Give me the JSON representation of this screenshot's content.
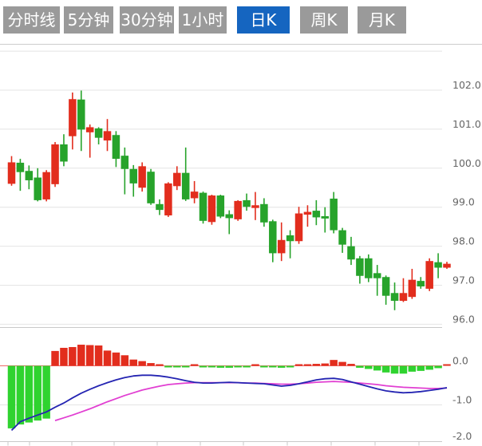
{
  "tabs": [
    {
      "label": "分时线",
      "active": false
    },
    {
      "label": "5分钟",
      "active": false
    },
    {
      "label": "30分钟",
      "active": false
    },
    {
      "label": "1小时",
      "active": false
    },
    {
      "label": "日K",
      "active": true
    },
    {
      "label": "周K",
      "active": false
    },
    {
      "label": "月K",
      "active": false
    }
  ],
  "colors": {
    "tab_inactive_bg": "#9a9a9a",
    "tab_active_bg": "#1565c0",
    "tab_text": "#ffffff",
    "candle_up": "#e22d1d",
    "candle_down": "#27a32b",
    "hist_up": "#e22d1d",
    "hist_down": "#2fd32f",
    "dif_line": "#2424b2",
    "dea_line": "#e13fd2",
    "zero_line": "#ef6a6a",
    "grid": "#e4e4e4",
    "axis": "#c9c9c9",
    "label": "#666666"
  },
  "chart_data": {
    "type": "candlestick",
    "title": "",
    "legend_position": "none",
    "grid": true,
    "main_panel": {
      "y_axis_labels": [
        "102.0",
        "101.0",
        "100.0",
        "99.0",
        "98.0",
        "97.0",
        "96.0"
      ],
      "y_range": [
        95.8,
        103.0
      ],
      "candles_ohlc": [
        {
          "o": 99.6,
          "h": 100.31,
          "l": 99.55,
          "c": 100.15
        },
        {
          "o": 100.14,
          "h": 100.24,
          "l": 99.42,
          "c": 99.9
        },
        {
          "o": 99.93,
          "h": 100.07,
          "l": 99.46,
          "c": 99.69
        },
        {
          "o": 99.76,
          "h": 100.0,
          "l": 99.15,
          "c": 99.18
        },
        {
          "o": 99.2,
          "h": 99.95,
          "l": 99.15,
          "c": 99.9
        },
        {
          "o": 99.59,
          "h": 100.67,
          "l": 99.52,
          "c": 100.61
        },
        {
          "o": 100.61,
          "h": 100.87,
          "l": 100.05,
          "c": 100.17
        },
        {
          "o": 100.82,
          "h": 101.94,
          "l": 100.48,
          "c": 101.77
        },
        {
          "o": 101.76,
          "h": 101.99,
          "l": 100.44,
          "c": 100.99
        },
        {
          "o": 100.92,
          "h": 101.12,
          "l": 100.27,
          "c": 101.05
        },
        {
          "o": 101.02,
          "h": 101.05,
          "l": 100.61,
          "c": 100.78
        },
        {
          "o": 100.71,
          "h": 101.26,
          "l": 100.44,
          "c": 100.95
        },
        {
          "o": 100.85,
          "h": 100.95,
          "l": 100.03,
          "c": 100.24
        },
        {
          "o": 100.32,
          "h": 100.53,
          "l": 99.33,
          "c": 99.98
        },
        {
          "o": 99.98,
          "h": 100.08,
          "l": 99.27,
          "c": 99.61
        },
        {
          "o": 99.5,
          "h": 100.15,
          "l": 99.4,
          "c": 100.05
        },
        {
          "o": 99.91,
          "h": 99.98,
          "l": 99.06,
          "c": 99.1
        },
        {
          "o": 99.08,
          "h": 99.2,
          "l": 98.8,
          "c": 98.93
        },
        {
          "o": 98.79,
          "h": 99.64,
          "l": 98.75,
          "c": 99.61
        },
        {
          "o": 99.54,
          "h": 100.05,
          "l": 99.44,
          "c": 99.88
        },
        {
          "o": 99.88,
          "h": 100.53,
          "l": 99.16,
          "c": 99.2
        },
        {
          "o": 99.23,
          "h": 99.67,
          "l": 99.1,
          "c": 99.4
        },
        {
          "o": 99.37,
          "h": 99.4,
          "l": 98.58,
          "c": 98.65
        },
        {
          "o": 98.62,
          "h": 99.32,
          "l": 98.55,
          "c": 99.3
        },
        {
          "o": 99.3,
          "h": 99.32,
          "l": 98.72,
          "c": 98.76
        },
        {
          "o": 98.82,
          "h": 98.92,
          "l": 98.31,
          "c": 98.72
        },
        {
          "o": 98.69,
          "h": 99.18,
          "l": 98.65,
          "c": 99.16
        },
        {
          "o": 99.18,
          "h": 99.35,
          "l": 98.91,
          "c": 99.01
        },
        {
          "o": 98.98,
          "h": 99.39,
          "l": 98.67,
          "c": 99.05
        },
        {
          "o": 99.08,
          "h": 99.23,
          "l": 98.5,
          "c": 98.61
        },
        {
          "o": 98.64,
          "h": 98.68,
          "l": 97.59,
          "c": 97.82
        },
        {
          "o": 97.82,
          "h": 98.61,
          "l": 97.62,
          "c": 98.16
        },
        {
          "o": 98.28,
          "h": 98.41,
          "l": 97.69,
          "c": 98.13
        },
        {
          "o": 98.13,
          "h": 99.01,
          "l": 98.06,
          "c": 98.84
        },
        {
          "o": 98.81,
          "h": 99.05,
          "l": 98.5,
          "c": 98.88
        },
        {
          "o": 98.91,
          "h": 99.18,
          "l": 98.54,
          "c": 98.74
        },
        {
          "o": 98.77,
          "h": 99.0,
          "l": 98.35,
          "c": 98.71
        },
        {
          "o": 99.22,
          "h": 99.39,
          "l": 98.33,
          "c": 98.41
        },
        {
          "o": 98.41,
          "h": 98.47,
          "l": 97.83,
          "c": 98.04
        },
        {
          "o": 98.0,
          "h": 98.24,
          "l": 97.52,
          "c": 97.66
        },
        {
          "o": 97.69,
          "h": 97.75,
          "l": 97.04,
          "c": 97.24
        },
        {
          "o": 97.69,
          "h": 97.79,
          "l": 97.08,
          "c": 97.18
        },
        {
          "o": 97.31,
          "h": 97.52,
          "l": 96.73,
          "c": 97.18
        },
        {
          "o": 97.21,
          "h": 97.25,
          "l": 96.5,
          "c": 96.73
        },
        {
          "o": 96.8,
          "h": 97.07,
          "l": 96.36,
          "c": 96.6
        },
        {
          "o": 96.6,
          "h": 97.18,
          "l": 96.57,
          "c": 96.8
        },
        {
          "o": 96.7,
          "h": 97.42,
          "l": 96.65,
          "c": 97.14
        },
        {
          "o": 97.11,
          "h": 97.21,
          "l": 96.91,
          "c": 96.97
        },
        {
          "o": 96.91,
          "h": 97.69,
          "l": 96.85,
          "c": 97.62
        },
        {
          "o": 97.59,
          "h": 97.82,
          "l": 97.18,
          "c": 97.45
        },
        {
          "o": 97.45,
          "h": 97.6,
          "l": 97.42,
          "c": 97.55
        }
      ]
    },
    "macd_panel": {
      "y_axis_labels": [
        "0.0",
        "-1.0",
        "-2.0"
      ],
      "y_range": [
        -2.05,
        0.6
      ],
      "histogram": [
        -1.6,
        -1.5,
        -1.45,
        -1.4,
        -1.35,
        0.38,
        0.46,
        0.48,
        0.54,
        0.53,
        0.52,
        0.39,
        0.34,
        0.27,
        0.16,
        0.12,
        0.07,
        0.02,
        -0.03,
        -0.02,
        -0.04,
        0.02,
        -0.04,
        -0.04,
        -0.05,
        -0.05,
        -0.04,
        -0.03,
        0.02,
        -0.01,
        -0.04,
        -0.05,
        -0.04,
        0.01,
        0.03,
        0.05,
        0.06,
        0.15,
        0.1,
        0.05,
        -0.05,
        -0.08,
        -0.12,
        -0.17,
        -0.2,
        -0.2,
        -0.15,
        -0.13,
        -0.1,
        -0.06,
        0.03
      ],
      "dif": [
        -1.65,
        -1.43,
        -1.34,
        -1.26,
        -1.18,
        -1.06,
        -0.95,
        -0.82,
        -0.7,
        -0.6,
        -0.51,
        -0.43,
        -0.36,
        -0.3,
        -0.26,
        -0.24,
        -0.24,
        -0.26,
        -0.29,
        -0.33,
        -0.38,
        -0.42,
        -0.44,
        -0.44,
        -0.43,
        -0.42,
        -0.43,
        -0.44,
        -0.45,
        -0.46,
        -0.49,
        -0.52,
        -0.5,
        -0.46,
        -0.41,
        -0.36,
        -0.33,
        -0.32,
        -0.35,
        -0.41,
        -0.47,
        -0.53,
        -0.59,
        -0.64,
        -0.67,
        -0.69,
        -0.68,
        -0.66,
        -0.63,
        -0.6,
        -0.56
      ],
      "dea": [
        null,
        null,
        null,
        null,
        null,
        -1.4,
        -1.33,
        -1.26,
        -1.18,
        -1.1,
        -1.01,
        -0.92,
        -0.84,
        -0.76,
        -0.69,
        -0.62,
        -0.57,
        -0.52,
        -0.48,
        -0.46,
        -0.44,
        -0.43,
        -0.43,
        -0.43,
        -0.43,
        -0.43,
        -0.43,
        -0.44,
        -0.44,
        -0.45,
        -0.46,
        -0.47,
        -0.47,
        -0.46,
        -0.44,
        -0.42,
        -0.41,
        -0.4,
        -0.41,
        -0.42,
        -0.44,
        -0.46,
        -0.48,
        -0.51,
        -0.53,
        -0.55,
        -0.56,
        -0.57,
        -0.58,
        -0.58,
        -0.57
      ]
    }
  }
}
